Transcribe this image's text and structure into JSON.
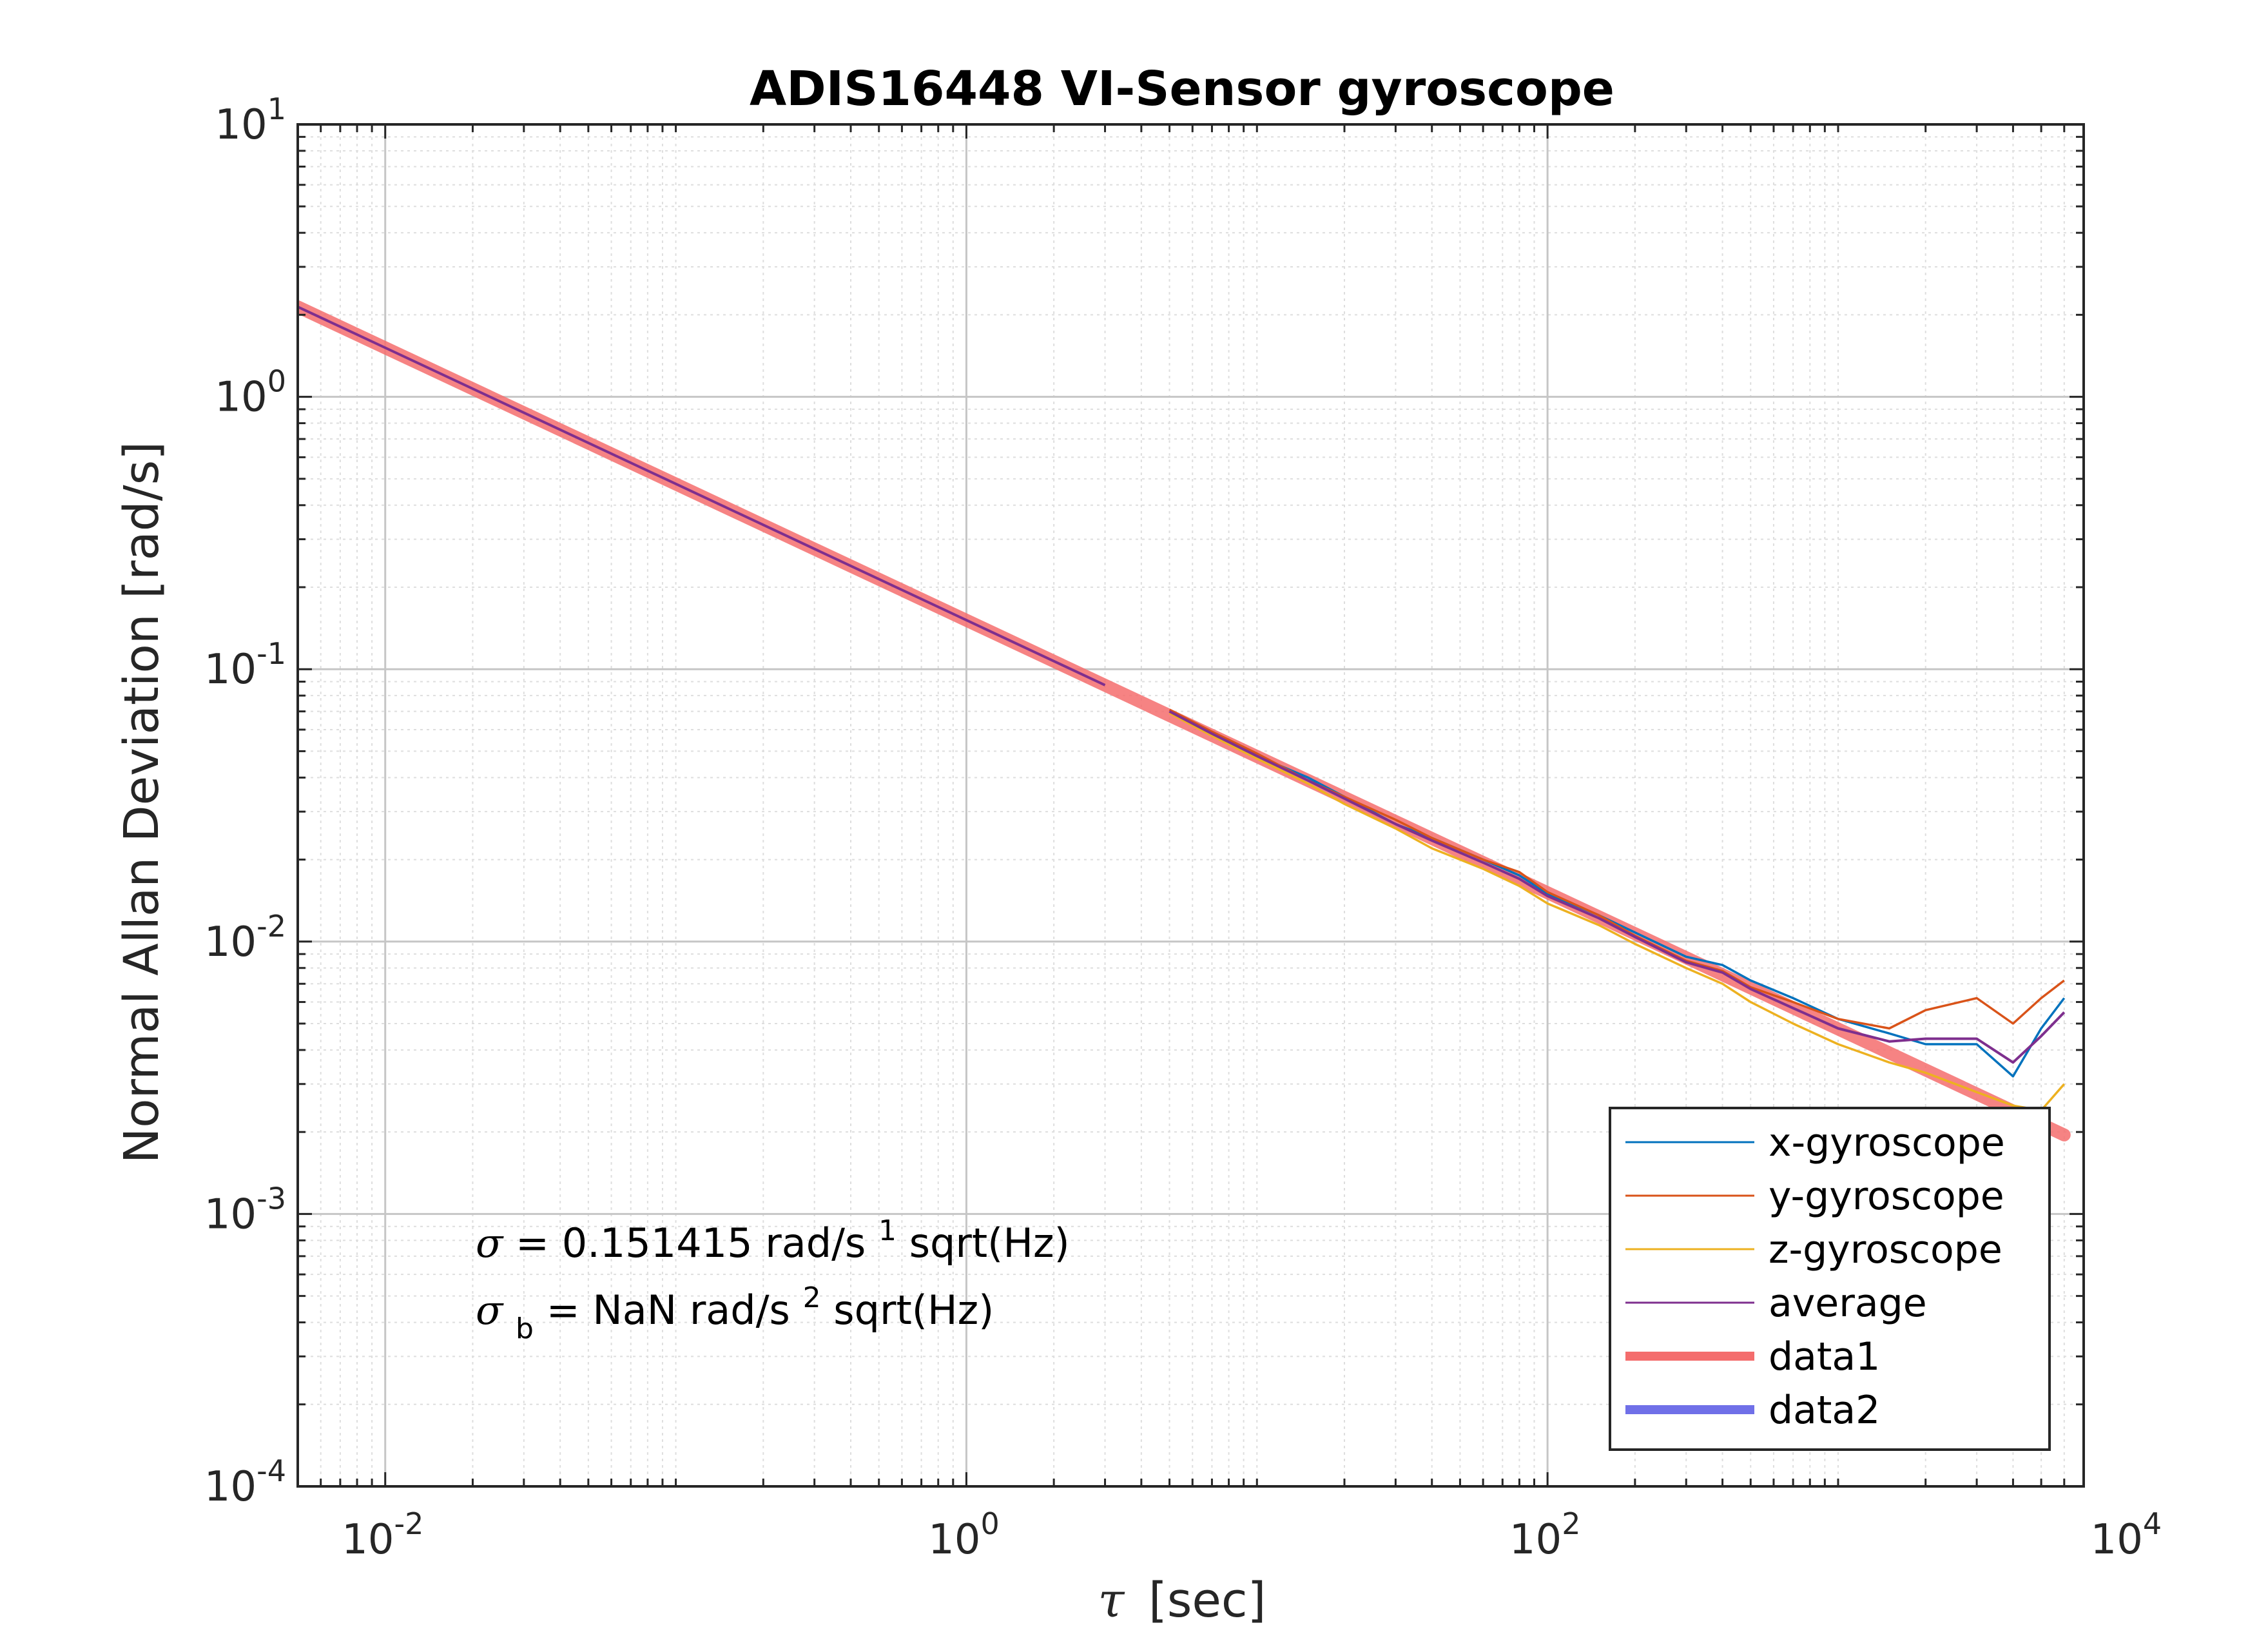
{
  "chart_data": {
    "type": "line",
    "title": "ADIS16448 VI-Sensor gyroscope",
    "xlabel_symbol": "τ",
    "xlabel_unit": "[sec]",
    "ylabel": "Normal Allan Deviation [rad/s]",
    "xscale": "log",
    "yscale": "log",
    "xlim": [
      0.005,
      7000
    ],
    "ylim": [
      0.0001,
      10
    ],
    "grid": "on (major and minor)",
    "legend_position": "bottom-right",
    "x_ticks": [
      {
        "base": "10",
        "exp": "-2"
      },
      {
        "base": "10",
        "exp": "0"
      },
      {
        "base": "10",
        "exp": "2"
      },
      {
        "base": "10",
        "exp": "4"
      }
    ],
    "y_ticks": [
      {
        "base": "10",
        "exp": "-4"
      },
      {
        "base": "10",
        "exp": "-3"
      },
      {
        "base": "10",
        "exp": "-2"
      },
      {
        "base": "10",
        "exp": "-1"
      },
      {
        "base": "10",
        "exp": "0"
      },
      {
        "base": "10",
        "exp": "1"
      }
    ],
    "annotations": {
      "line1": {
        "sym": "σ",
        "pre": " = 0.151415 rad/s",
        "sup": "1",
        "post": "sqrt(Hz)"
      },
      "line2": {
        "sym": "σ",
        "sub": "b",
        "pre": " = NaN rad/s",
        "sup": "2",
        "post": "sqrt(Hz)"
      }
    },
    "series": [
      {
        "name": "x-gyroscope",
        "color": "#0072BD",
        "x": [
          5,
          7,
          10,
          15,
          20,
          30,
          40,
          60,
          80,
          100,
          150,
          200,
          300,
          400,
          500,
          700,
          1000,
          1500,
          2000,
          3000,
          4000,
          5000,
          6000
        ],
        "y": [
          0.07,
          0.058,
          0.048,
          0.04,
          0.034,
          0.027,
          0.024,
          0.02,
          0.0175,
          0.015,
          0.0125,
          0.0108,
          0.0088,
          0.0082,
          0.0072,
          0.0062,
          0.0052,
          0.0046,
          0.0042,
          0.0042,
          0.0032,
          0.0048,
          0.0062
        ]
      },
      {
        "name": "y-gyroscope",
        "color": "#D95319",
        "x": [
          5,
          7,
          10,
          15,
          20,
          30,
          40,
          60,
          80,
          100,
          150,
          200,
          300,
          400,
          500,
          700,
          1000,
          1500,
          2000,
          3000,
          4000,
          5000,
          6000
        ],
        "y": [
          0.071,
          0.059,
          0.049,
          0.039,
          0.034,
          0.028,
          0.024,
          0.02,
          0.018,
          0.0152,
          0.0125,
          0.0105,
          0.0085,
          0.0078,
          0.0068,
          0.006,
          0.0052,
          0.0048,
          0.0056,
          0.0062,
          0.005,
          0.0062,
          0.0072
        ]
      },
      {
        "name": "z-gyroscope",
        "color": "#EDB120",
        "x": [
          5,
          7,
          10,
          15,
          20,
          30,
          40,
          60,
          80,
          100,
          150,
          200,
          300,
          400,
          500,
          700,
          1000,
          1500,
          2000,
          3000,
          4000,
          5000,
          6000
        ],
        "y": [
          0.069,
          0.057,
          0.047,
          0.038,
          0.032,
          0.026,
          0.022,
          0.0185,
          0.016,
          0.0138,
          0.0115,
          0.0098,
          0.008,
          0.007,
          0.006,
          0.005,
          0.0042,
          0.0036,
          0.0033,
          0.0028,
          0.0025,
          0.0024,
          0.003
        ]
      },
      {
        "name": "average",
        "color": "#7E2F8E",
        "x": [
          5,
          7,
          10,
          15,
          20,
          30,
          40,
          60,
          80,
          100,
          150,
          200,
          300,
          400,
          500,
          700,
          1000,
          1500,
          2000,
          3000,
          4000,
          5000,
          6000
        ],
        "y": [
          0.07,
          0.058,
          0.048,
          0.039,
          0.0335,
          0.027,
          0.0235,
          0.0195,
          0.017,
          0.0147,
          0.0122,
          0.0104,
          0.0084,
          0.0077,
          0.0067,
          0.0057,
          0.0048,
          0.0043,
          0.0044,
          0.0044,
          0.0036,
          0.0045,
          0.0055
        ]
      },
      {
        "name": "data1",
        "color": "#F46D6D",
        "x": [
          0.005,
          6000
        ],
        "y": [
          2.14,
          0.00195
        ]
      },
      {
        "name": "data2",
        "color": "#7070E8",
        "x": [],
        "y": []
      }
    ],
    "averaged_region": {
      "name": "average",
      "color": "#7E2F8E",
      "x": [
        0.005,
        0.01,
        0.1,
        1,
        3
      ],
      "y": [
        2.14,
        1.514,
        0.479,
        0.1514,
        0.0874
      ]
    }
  }
}
